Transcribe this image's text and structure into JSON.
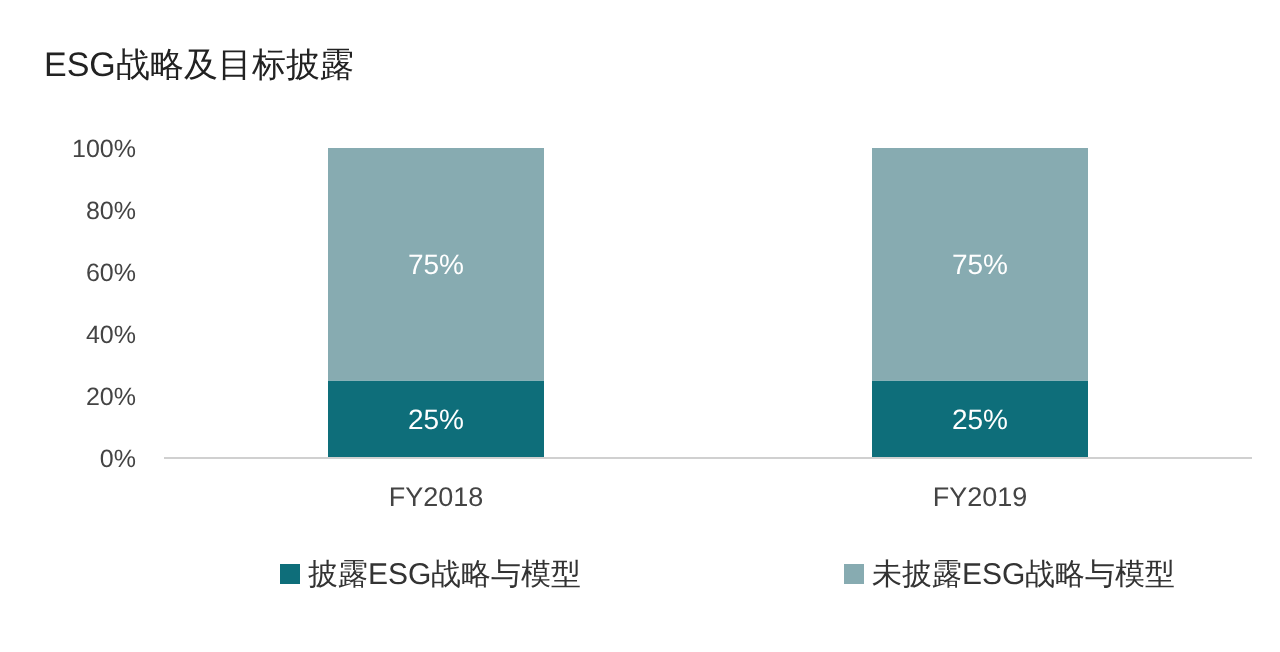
{
  "chart_data": {
    "type": "bar",
    "title": "ESG战略及目标披露",
    "stacked": true,
    "categories": [
      "FY2018",
      "FY2019"
    ],
    "series": [
      {
        "name": "披露ESG战略与模型",
        "color": "#0e6e7a",
        "values": [
          25,
          25
        ],
        "value_labels": [
          "25%",
          "25%"
        ]
      },
      {
        "name": "未披露ESG战略与模型",
        "color": "#87abb1",
        "values": [
          75,
          75
        ],
        "value_labels": [
          "75%",
          "75%"
        ]
      }
    ],
    "ylim": [
      0,
      100
    ],
    "yticks": [
      {
        "value": 0,
        "label": "0%"
      },
      {
        "value": 20,
        "label": "20%"
      },
      {
        "value": 40,
        "label": "40%"
      },
      {
        "value": 60,
        "label": "60%"
      },
      {
        "value": 80,
        "label": "80%"
      },
      {
        "value": 100,
        "label": "100%"
      }
    ],
    "legend": "bottom"
  }
}
